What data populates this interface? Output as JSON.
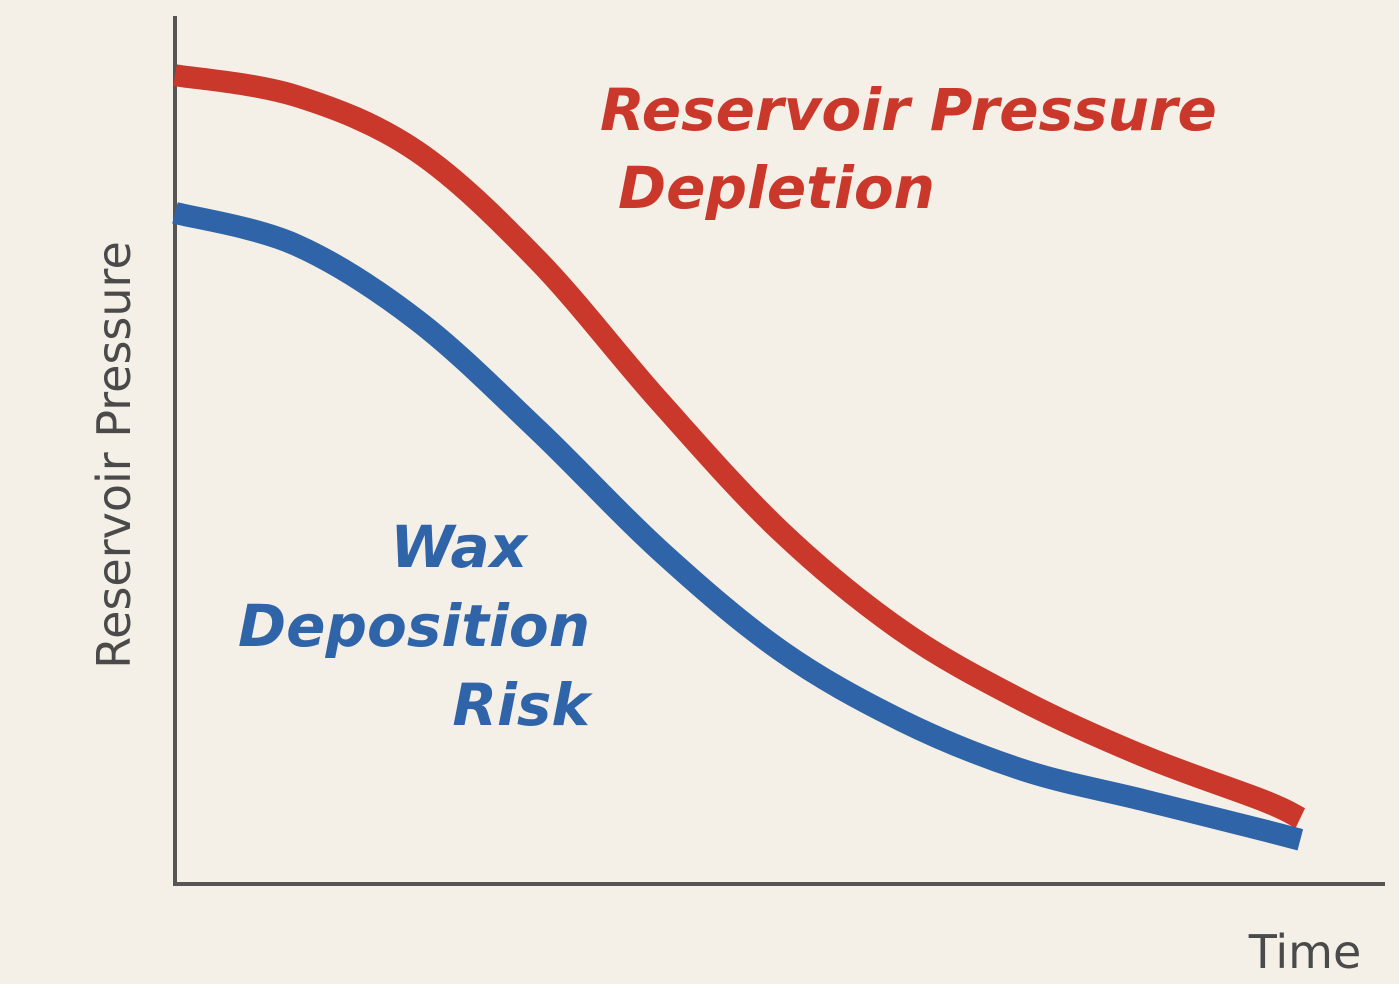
{
  "chart_data": {
    "type": "line",
    "x_label": "Time",
    "y_label": "Reservoir Pressure",
    "x": [
      0,
      10,
      20,
      30,
      40,
      50,
      60,
      70,
      80,
      90,
      93
    ],
    "xlim": [
      0,
      100
    ],
    "ylim": [
      0,
      100
    ],
    "series": [
      {
        "name": "Reservoir Pressure Depletion",
        "color": "#c9382b",
        "values": [
          93.4,
          91.0,
          84.6,
          72.0,
          55.8,
          40.8,
          29.3,
          21.2,
          14.8,
          9.6,
          7.6
        ]
      },
      {
        "name": "Wax Deposition Risk",
        "color": "#2f64a8",
        "values": [
          77.5,
          73.8,
          65.1,
          52.4,
          38.6,
          27.0,
          18.9,
          13.2,
          9.7,
          6.2,
          5.1
        ]
      }
    ],
    "annotations": [
      {
        "lines": [
          "Reservoir Pressure",
          "Depletion"
        ],
        "color": "#c9382b"
      },
      {
        "lines": [
          "Wax",
          "Deposition",
          "Risk"
        ],
        "color": "#2f64a8"
      }
    ]
  }
}
